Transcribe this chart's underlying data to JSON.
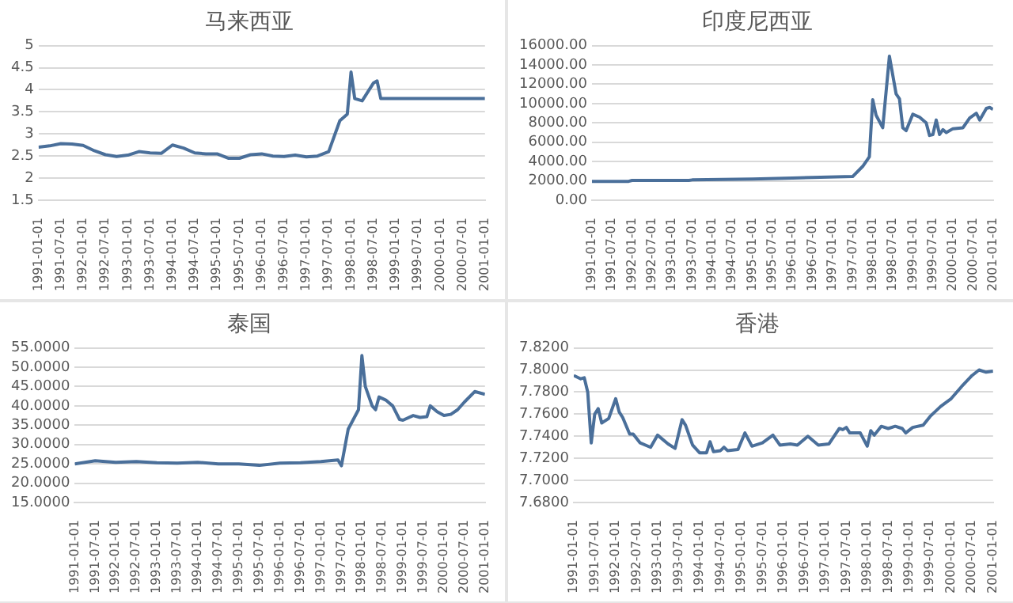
{
  "chart_data": [
    {
      "type": "line",
      "title": "马来西亚",
      "x": [
        "1991-01",
        "1991-04",
        "1991-07",
        "1991-10",
        "1992-01",
        "1992-04",
        "1992-07",
        "1992-10",
        "1993-01",
        "1993-04",
        "1993-07",
        "1993-10",
        "1994-01",
        "1994-04",
        "1994-07",
        "1994-10",
        "1995-01",
        "1995-04",
        "1995-07",
        "1995-10",
        "1996-01",
        "1996-04",
        "1996-07",
        "1996-10",
        "1997-01",
        "1997-04",
        "1997-07",
        "1997-10",
        "1997-12",
        "1998-01",
        "1998-02",
        "1998-04",
        "1998-07",
        "1998-08",
        "1998-09",
        "2001-01"
      ],
      "series": [
        {
          "color": "#4a6f9a",
          "values": [
            2.7,
            2.73,
            2.78,
            2.77,
            2.74,
            2.62,
            2.53,
            2.49,
            2.52,
            2.6,
            2.57,
            2.56,
            2.75,
            2.68,
            2.57,
            2.55,
            2.55,
            2.45,
            2.45,
            2.53,
            2.55,
            2.5,
            2.49,
            2.52,
            2.48,
            2.5,
            2.6,
            3.3,
            3.45,
            4.4,
            3.8,
            3.75,
            4.15,
            4.2,
            3.8,
            3.8
          ]
        }
      ],
      "ylim": [
        1.5,
        5
      ],
      "yticks": [
        1.5,
        2,
        2.5,
        3,
        3.5,
        4,
        4.5,
        5
      ],
      "xlim": [
        "1991-01",
        "2001-01"
      ],
      "xticks": [
        {
          "value": "1991-01",
          "label": "1991-01-01"
        },
        {
          "value": "1991-07",
          "label": "1991-07-01"
        },
        {
          "value": "1992-01",
          "label": "1992-01-01"
        },
        {
          "value": "1992-07",
          "label": "1992-07-01"
        },
        {
          "value": "1993-01",
          "label": "1993-01-01"
        },
        {
          "value": "1993-07",
          "label": "1993-07-01"
        },
        {
          "value": "1994-01",
          "label": "1994-01-01"
        },
        {
          "value": "1994-07",
          "label": "1994-07-01"
        },
        {
          "value": "1995-01",
          "label": "1995-01-01"
        },
        {
          "value": "1995-07",
          "label": "1995-07-01"
        },
        {
          "value": "1996-01",
          "label": "1996-01-01"
        },
        {
          "value": "1996-07",
          "label": "1996-07-01"
        },
        {
          "value": "1997-01",
          "label": "1997-01-01"
        },
        {
          "value": "1997-07",
          "label": "1997-07-01"
        },
        {
          "value": "1998-01",
          "label": "1998-01-01"
        },
        {
          "value": "1998-07",
          "label": "1998-07-01"
        },
        {
          "value": "1999-01",
          "label": "1999-01-01"
        },
        {
          "value": "1999-07",
          "label": "1999-07-01"
        },
        {
          "value": "2000-01",
          "label": "2000-01-01"
        },
        {
          "value": "2000-07",
          "label": "2000-07-01"
        },
        {
          "value": "2001-01",
          "label": "2001-01-01"
        }
      ],
      "grid": "y",
      "legend": false
    },
    {
      "type": "line",
      "title": "印度尼西亚",
      "x": [
        "1991-01",
        "1991-12",
        "1992-01",
        "1993-06",
        "1993-07",
        "1995-01",
        "1996-01",
        "1997-07",
        "1997-10",
        "1997-12",
        "1998-01",
        "1998-02",
        "1998-04",
        "1998-06",
        "1998-08",
        "1998-09",
        "1998-10",
        "1998-11",
        "1999-01",
        "1999-03",
        "1999-05",
        "1999-06",
        "1999-07",
        "1999-08",
        "1999-09",
        "1999-10",
        "1999-11",
        "2000-01",
        "2000-04",
        "2000-06",
        "2000-08",
        "2000-09",
        "2000-11",
        "2000-12",
        "2001-01"
      ],
      "series": [
        {
          "color": "#4a6f9a",
          "values": [
            1950,
            1950,
            2050,
            2050,
            2100,
            2200,
            2300,
            2450,
            3500,
            4500,
            10400,
            8800,
            7500,
            14900,
            11000,
            10500,
            7500,
            7200,
            8900,
            8600,
            8000,
            6700,
            6800,
            8300,
            6800,
            7300,
            7000,
            7400,
            7500,
            8500,
            9000,
            8300,
            9500,
            9600,
            9400
          ]
        }
      ],
      "ylim": [
        0,
        16000
      ],
      "yticks": [
        {
          "value": 0,
          "label": "0.00"
        },
        {
          "value": 2000,
          "label": "2000.00"
        },
        {
          "value": 4000,
          "label": "4000.00"
        },
        {
          "value": 6000,
          "label": "6000.00"
        },
        {
          "value": 8000,
          "label": "8000.00"
        },
        {
          "value": 10000,
          "label": "10000.00"
        },
        {
          "value": 12000,
          "label": "12000.00"
        },
        {
          "value": 14000,
          "label": "14000.00"
        },
        {
          "value": 16000,
          "label": "16000.00"
        }
      ],
      "xlim": [
        "1991-01",
        "2001-01"
      ],
      "xticks": [
        {
          "value": "1991-01",
          "label": "1991-01-01"
        },
        {
          "value": "1991-07",
          "label": "1991-07-01"
        },
        {
          "value": "1992-01",
          "label": "1992-01-01"
        },
        {
          "value": "1992-07",
          "label": "1992-07-01"
        },
        {
          "value": "1993-01",
          "label": "1993-01-01"
        },
        {
          "value": "1993-07",
          "label": "1993-07-01"
        },
        {
          "value": "1994-01",
          "label": "1994-01-01"
        },
        {
          "value": "1994-07",
          "label": "1994-07-01"
        },
        {
          "value": "1995-01",
          "label": "1995-01-01"
        },
        {
          "value": "1995-07",
          "label": "1995-07-01"
        },
        {
          "value": "1996-01",
          "label": "1996-01-01"
        },
        {
          "value": "1996-07",
          "label": "1996-07-01"
        },
        {
          "value": "1997-01",
          "label": "1997-01-01"
        },
        {
          "value": "1997-07",
          "label": "1997-07-01"
        },
        {
          "value": "1998-01",
          "label": "1998-01-01"
        },
        {
          "value": "1998-07",
          "label": "1998-07-01"
        },
        {
          "value": "1999-01",
          "label": "1999-01-01"
        },
        {
          "value": "1999-07",
          "label": "1999-07-01"
        },
        {
          "value": "2000-01",
          "label": "2000-01-01"
        },
        {
          "value": "2000-07",
          "label": "2000-07-01"
        },
        {
          "value": "2001-01",
          "label": "2001-01-01"
        }
      ],
      "grid": "y",
      "legend": false
    },
    {
      "type": "line",
      "title": "泰国",
      "x": [
        "1991-01",
        "1991-07",
        "1992-01",
        "1992-07",
        "1993-01",
        "1993-07",
        "1994-01",
        "1994-07",
        "1995-01",
        "1995-07",
        "1996-01",
        "1996-07",
        "1997-01",
        "1997-06",
        "1997-07",
        "1997-09",
        "1997-12",
        "1998-01",
        "1998-02",
        "1998-04",
        "1998-05",
        "1998-06",
        "1998-08",
        "1998-10",
        "1998-12",
        "1999-01",
        "1999-04",
        "1999-06",
        "1999-08",
        "1999-09",
        "1999-11",
        "2000-01",
        "2000-03",
        "2000-05",
        "2000-07",
        "2000-10",
        "2001-01"
      ],
      "series": [
        {
          "color": "#4a6f9a",
          "values": [
            25.0,
            25.8,
            25.4,
            25.6,
            25.3,
            25.2,
            25.4,
            25.0,
            25.0,
            24.6,
            25.2,
            25.3,
            25.6,
            26.0,
            24.5,
            34.0,
            39.0,
            53.0,
            45.0,
            40.0,
            39.0,
            42.3,
            41.5,
            40.0,
            36.5,
            36.3,
            37.5,
            37.0,
            37.2,
            40.0,
            38.5,
            37.5,
            37.8,
            39.0,
            41.0,
            43.7,
            43.0
          ]
        }
      ],
      "ylim": [
        15,
        55
      ],
      "yticks": [
        {
          "value": 15,
          "label": "15.0000"
        },
        {
          "value": 20,
          "label": "20.0000"
        },
        {
          "value": 25,
          "label": "25.0000"
        },
        {
          "value": 30,
          "label": "30.0000"
        },
        {
          "value": 35,
          "label": "35.0000"
        },
        {
          "value": 40,
          "label": "40.0000"
        },
        {
          "value": 45,
          "label": "45.0000"
        },
        {
          "value": 50,
          "label": "50.0000"
        },
        {
          "value": 55,
          "label": "55.0000"
        }
      ],
      "xlim": [
        "1991-01",
        "2001-01"
      ],
      "xticks": [
        {
          "value": "1991-01",
          "label": "1991-01-01"
        },
        {
          "value": "1991-07",
          "label": "1991-07-01"
        },
        {
          "value": "1992-01",
          "label": "1992-01-01"
        },
        {
          "value": "1992-07",
          "label": "1992-07-01"
        },
        {
          "value": "1993-01",
          "label": "1993-01-01"
        },
        {
          "value": "1993-07",
          "label": "1993-07-01"
        },
        {
          "value": "1994-01",
          "label": "1994-01-01"
        },
        {
          "value": "1994-07",
          "label": "1994-07-01"
        },
        {
          "value": "1995-01",
          "label": "1995-01-01"
        },
        {
          "value": "1995-07",
          "label": "1995-07-01"
        },
        {
          "value": "1996-01",
          "label": "1996-01-01"
        },
        {
          "value": "1996-07",
          "label": "1996-07-01"
        },
        {
          "value": "1997-01",
          "label": "1997-01-01"
        },
        {
          "value": "1997-07",
          "label": "1997-07-01"
        },
        {
          "value": "1998-01",
          "label": "1998-01-01"
        },
        {
          "value": "1998-07",
          "label": "1998-07-01"
        },
        {
          "value": "1999-01",
          "label": "1999-01-01"
        },
        {
          "value": "1999-07",
          "label": "1999-07-01"
        },
        {
          "value": "2000-01",
          "label": "2000-01-01"
        },
        {
          "value": "2000-07",
          "label": "2000-07-01"
        },
        {
          "value": "2001-01",
          "label": "2001-01-01"
        }
      ],
      "grid": "y",
      "legend": false
    },
    {
      "type": "line",
      "title": "香港",
      "x": [
        "1991-01",
        "1991-03",
        "1991-04",
        "1991-05",
        "1991-06",
        "1991-07",
        "1991-08",
        "1991-09",
        "1991-11",
        "1992-01",
        "1992-02",
        "1992-03",
        "1992-05",
        "1992-06",
        "1992-08",
        "1992-11",
        "1993-01",
        "1993-04",
        "1993-06",
        "1993-08",
        "1993-09",
        "1993-11",
        "1994-01",
        "1994-03",
        "1994-04",
        "1994-05",
        "1994-07",
        "1994-08",
        "1994-09",
        "1994-12",
        "1995-02",
        "1995-04",
        "1995-07",
        "1995-10",
        "1995-12",
        "1996-03",
        "1996-05",
        "1996-08",
        "1996-11",
        "1997-02",
        "1997-05",
        "1997-06",
        "1997-07",
        "1997-08",
        "1997-11",
        "1998-01",
        "1998-02",
        "1998-03",
        "1998-05",
        "1998-07",
        "1998-09",
        "1998-11",
        "1998-12",
        "1999-02",
        "1999-05",
        "1999-07",
        "1999-10",
        "2000-01",
        "2000-04",
        "2000-07",
        "2000-09",
        "2000-11",
        "2001-01"
      ],
      "series": [
        {
          "color": "#4a6f9a",
          "values": [
            7.795,
            7.792,
            7.793,
            7.78,
            7.734,
            7.76,
            7.765,
            7.752,
            7.756,
            7.774,
            7.762,
            7.757,
            7.742,
            7.742,
            7.734,
            7.73,
            7.741,
            7.733,
            7.729,
            7.755,
            7.75,
            7.732,
            7.725,
            7.725,
            7.735,
            7.726,
            7.727,
            7.73,
            7.727,
            7.728,
            7.743,
            7.731,
            7.734,
            7.741,
            7.732,
            7.733,
            7.732,
            7.74,
            7.732,
            7.733,
            7.747,
            7.746,
            7.748,
            7.743,
            7.743,
            7.731,
            7.745,
            7.741,
            7.749,
            7.747,
            7.749,
            7.747,
            7.743,
            7.748,
            7.75,
            7.758,
            7.767,
            7.774,
            7.785,
            7.795,
            7.8,
            7.798,
            7.799
          ]
        }
      ],
      "ylim": [
        7.68,
        7.82
      ],
      "yticks": [
        {
          "value": 7.68,
          "label": "7.6800"
        },
        {
          "value": 7.7,
          "label": "7.7000"
        },
        {
          "value": 7.72,
          "label": "7.7200"
        },
        {
          "value": 7.74,
          "label": "7.7400"
        },
        {
          "value": 7.76,
          "label": "7.7600"
        },
        {
          "value": 7.78,
          "label": "7.7800"
        },
        {
          "value": 7.8,
          "label": "7.8000"
        },
        {
          "value": 7.82,
          "label": "7.8200"
        }
      ],
      "xlim": [
        "1991-01",
        "2001-01"
      ],
      "xticks": [
        {
          "value": "1991-01",
          "label": "1991-01-01"
        },
        {
          "value": "1991-07",
          "label": "1991-07-01"
        },
        {
          "value": "1992-01",
          "label": "1992-01-01"
        },
        {
          "value": "1992-07",
          "label": "1992-07-01"
        },
        {
          "value": "1993-01",
          "label": "1993-01-01"
        },
        {
          "value": "1993-07",
          "label": "1993-07-01"
        },
        {
          "value": "1994-01",
          "label": "1994-01-01"
        },
        {
          "value": "1994-07",
          "label": "1994-07-01"
        },
        {
          "value": "1995-01",
          "label": "1995-01-01"
        },
        {
          "value": "1995-07",
          "label": "1995-07-01"
        },
        {
          "value": "1996-01",
          "label": "1996-01-01"
        },
        {
          "value": "1996-07",
          "label": "1996-07-01"
        },
        {
          "value": "1997-01",
          "label": "1997-01-01"
        },
        {
          "value": "1997-07",
          "label": "1997-07-01"
        },
        {
          "value": "1998-01",
          "label": "1998-01-01"
        },
        {
          "value": "1998-07",
          "label": "1998-07-01"
        },
        {
          "value": "1999-01",
          "label": "1999-01-01"
        },
        {
          "value": "1999-07",
          "label": "1999-07-01"
        },
        {
          "value": "2000-01",
          "label": "2000-01-01"
        },
        {
          "value": "2000-07",
          "label": "2000-07-01"
        },
        {
          "value": "2001-01",
          "label": "2001-01-01"
        }
      ],
      "grid": "y",
      "legend": false
    }
  ]
}
